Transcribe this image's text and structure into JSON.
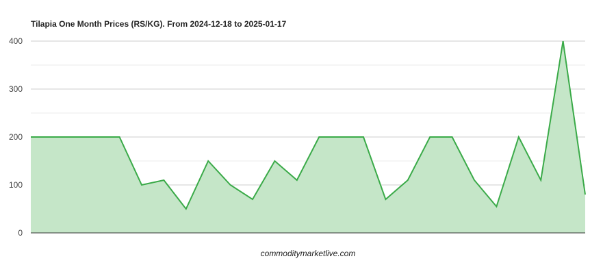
{
  "chart_data": {
    "type": "area",
    "title": "Tilapia One Month Prices (RS/KG). From 2024-12-18 to 2025-01-17",
    "xlabel": "",
    "ylabel": "",
    "ylim": [
      0,
      400
    ],
    "yticks": [
      "0",
      "100",
      "200",
      "300",
      "400"
    ],
    "grid": true,
    "legend": "none",
    "colors": {
      "line": "#3aaa48",
      "fill": "#c5e6c8"
    },
    "values": [
      200,
      200,
      200,
      200,
      200,
      100,
      110,
      50,
      150,
      100,
      70,
      150,
      110,
      200,
      200,
      200,
      70,
      110,
      200,
      200,
      110,
      55,
      200,
      110,
      400,
      80
    ]
  },
  "credit": "commoditymarketlive.com"
}
